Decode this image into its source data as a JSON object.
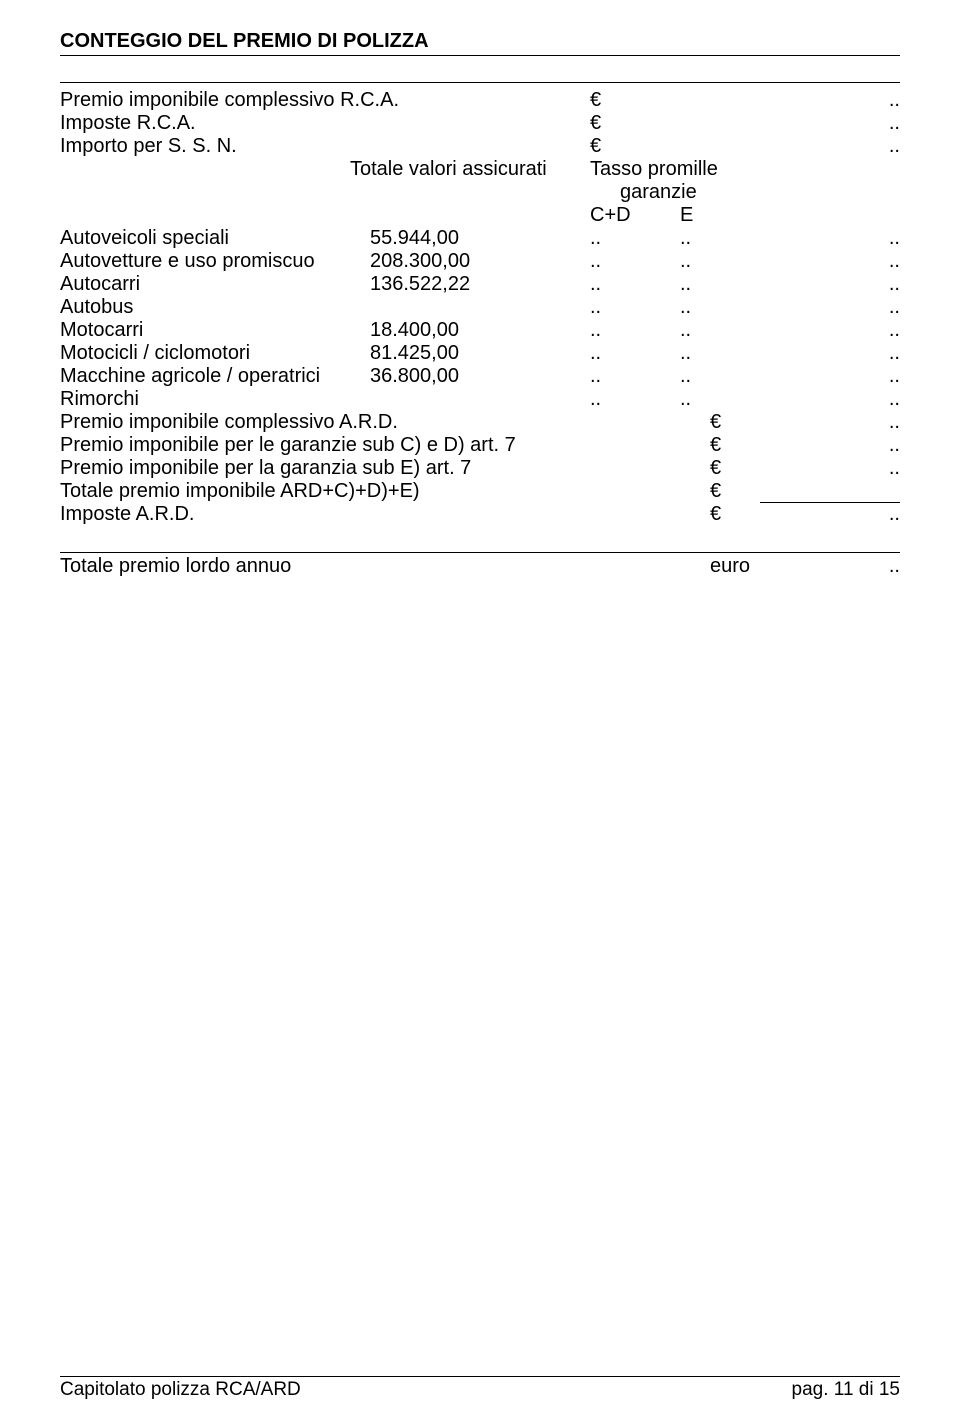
{
  "title": "CONTEGGIO DEL PREMIO DI POLIZZA",
  "top_rows": [
    {
      "label": "Premio imponibile complessivo R.C.A.",
      "euro": "€",
      "val": ".."
    },
    {
      "label": "Imposte R.C.A.",
      "euro": "€",
      "val": ".."
    },
    {
      "label": "Importo per S. S. N.",
      "euro": "€",
      "val": ".."
    }
  ],
  "table_header": {
    "col1": "Totale valori assicurati",
    "col2": "Tasso promille",
    "sub2": "garanzie",
    "c": "C+D",
    "e": "E"
  },
  "rows": [
    {
      "label": "Autoveicoli speciali",
      "val": "55.944,00",
      "cd": "..",
      "e": "..",
      "tail": ".."
    },
    {
      "label": "Autovetture e uso promiscuo",
      "val": "208.300,00",
      "cd": "..",
      "e": "..",
      "tail": ".."
    },
    {
      "label": "Autocarri",
      "val": "136.522,22",
      "cd": "..",
      "e": "..",
      "tail": ".."
    },
    {
      "label": "Autobus",
      "val": "",
      "cd": "..",
      "e": "..",
      "tail": ".."
    },
    {
      "label": "Motocarri",
      "val": "18.400,00",
      "cd": "..",
      "e": "..",
      "tail": ".."
    },
    {
      "label": "Motocicli / ciclomotori",
      "val": "81.425,00",
      "cd": "..",
      "e": "..",
      "tail": ".."
    },
    {
      "label": "Macchine agricole / operatrici",
      "val": "36.800,00",
      "cd": "..",
      "e": "..",
      "tail": ".."
    },
    {
      "label": "Rimorchi",
      "val": "",
      "cd": "..",
      "e": "..",
      "tail": ".."
    }
  ],
  "summary": [
    {
      "label": "Premio imponibile complessivo A.R.D.",
      "euro": "€",
      "val": ".."
    },
    {
      "label": "Premio imponibile per le garanzie sub C) e D) art. 7",
      "euro": "€",
      "val": ".."
    },
    {
      "label": "Premio imponibile per la garanzia sub E) art. 7",
      "euro": "€",
      "val": ".."
    },
    {
      "label": "Totale premio imponibile ARD+C)+D)+E)",
      "euro": "€",
      "val": "_line_"
    },
    {
      "label": "Imposte A.R.D.",
      "euro": "€",
      "val": ".."
    }
  ],
  "total": {
    "label": "Totale premio lordo annuo",
    "euro": "euro",
    "val": ".."
  },
  "footer": {
    "left": "Capitolato polizza RCA/ARD",
    "right": "pag. 11 di 15"
  }
}
